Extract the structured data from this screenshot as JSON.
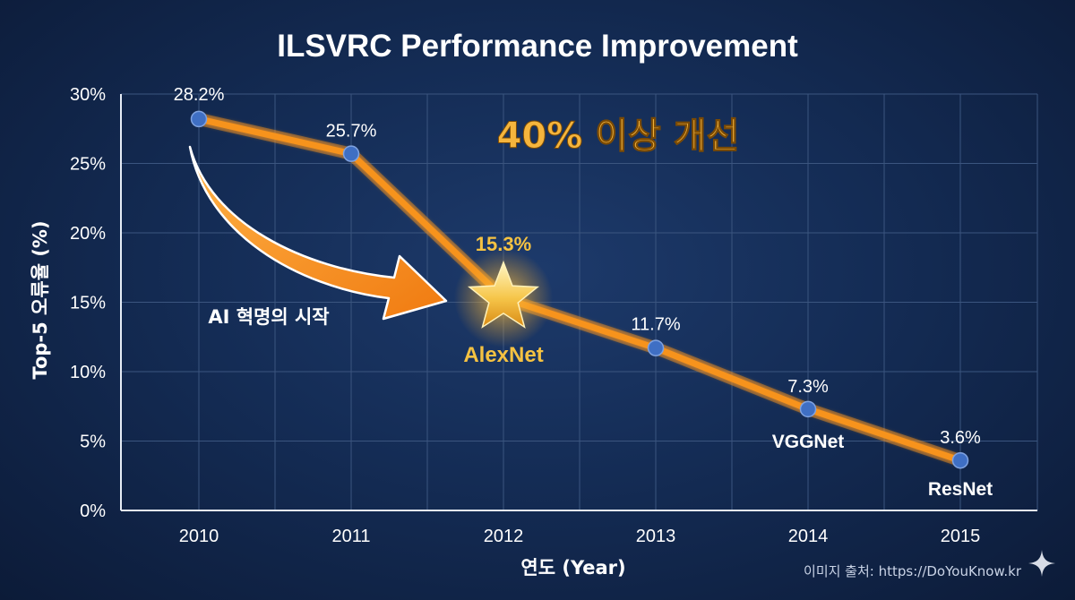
{
  "chart_data": {
    "type": "line",
    "title": "ILSVRC Performance Improvement",
    "xlabel": "연도 (Year)",
    "ylabel": "Top-5 오류율 (%)",
    "categories": [
      "2010",
      "2011",
      "2012",
      "2013",
      "2014",
      "2015"
    ],
    "values": [
      28.2,
      25.7,
      15.3,
      11.7,
      7.3,
      3.6
    ],
    "value_labels": [
      "28.2%",
      "25.7%",
      "15.3%",
      "11.7%",
      "7.3%",
      "3.6%"
    ],
    "ylim": [
      0,
      30
    ],
    "yticks": [
      0,
      5,
      10,
      15,
      20,
      25,
      30
    ],
    "ytick_labels": [
      "0%",
      "5%",
      "10%",
      "15%",
      "20%",
      "25%",
      "30%"
    ],
    "grid": true,
    "point_names": [
      {
        "year": "2012",
        "name": "AlexNet"
      },
      {
        "year": "2014",
        "name": "VGGNet"
      },
      {
        "year": "2015",
        "name": "ResNet"
      }
    ],
    "annotations": {
      "headline": "40% 이상 개선",
      "arrow_caption": "AI 혁명의 시작"
    },
    "colors": {
      "line": "#f7931e",
      "point": "#3f6fc4",
      "highlight": "#f5c242",
      "grid": "#3b557f"
    }
  },
  "watermark": "이미지 출처: https://DoYouKnow.kr"
}
